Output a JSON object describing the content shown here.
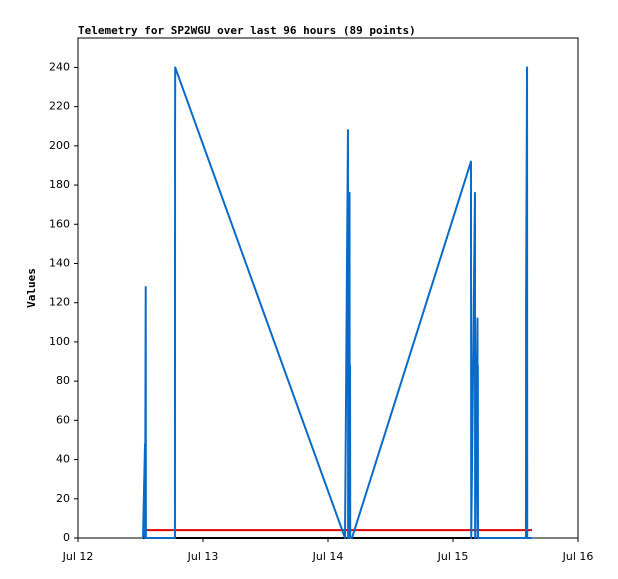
{
  "chart_data": {
    "type": "line",
    "title": "Telemetry for SP2WGU over last 96 hours (89 points)",
    "y_label": "Values",
    "xlim": [
      "Jul 12 00:00",
      "Jul 16 00:00"
    ],
    "xticks": [
      {
        "value": "Jul 12 00:00",
        "label": "Jul 12"
      },
      {
        "value": "Jul 13 00:00",
        "label": "Jul 13"
      },
      {
        "value": "Jul 14 00:00",
        "label": "Jul 14"
      },
      {
        "value": "Jul 15 00:00",
        "label": "Jul 15"
      },
      {
        "value": "Jul 16 00:00",
        "label": "Jul 16"
      }
    ],
    "ylim": [
      0,
      255
    ],
    "yticks": [
      0,
      20,
      40,
      60,
      80,
      100,
      120,
      140,
      160,
      180,
      200,
      220,
      240
    ],
    "grid": false,
    "series": [
      {
        "color": "#000000",
        "x": [
          "Jul 12 12:29",
          "Jul 15 15:10"
        ],
        "values": [
          0,
          0
        ]
      },
      {
        "color": "#e00000",
        "x": [
          "Jul 12 12:29",
          "Jul 15 15:10"
        ],
        "values": [
          4,
          4
        ]
      },
      {
        "color": "#0a6ac8",
        "x": [
          "Jul 12 12:29",
          "Jul 12 12:52",
          "Jul 12 12:53",
          "Jul 12 13:00",
          "Jul 12 13:02",
          "Jul 12 18:37",
          "Jul 12 18:38",
          "Jul 12 18:40",
          "Jul 14 03:16",
          "Jul 14 03:50",
          "Jul 14 03:52",
          "Jul 14 04:08",
          "Jul 14 04:10",
          "Jul 14 04:14",
          "Jul 14 04:16",
          "Jul 14 04:36",
          "Jul 15 03:27",
          "Jul 15 03:30",
          "Jul 15 04:13",
          "Jul 15 04:15",
          "Jul 15 04:42",
          "Jul 15 04:44",
          "Jul 15 04:46",
          "Jul 15 04:48",
          "Jul 15 14:01",
          "Jul 15 14:02",
          "Jul 15 14:13",
          "Jul 15 14:15",
          "Jul 15 15:10"
        ],
        "values": [
          0,
          48,
          0,
          128,
          0,
          0,
          208,
          240,
          0,
          208,
          0,
          176,
          0,
          88,
          0,
          0,
          192,
          0,
          176,
          0,
          112,
          0,
          88,
          0,
          0,
          120,
          240,
          0,
          0
        ]
      }
    ]
  }
}
